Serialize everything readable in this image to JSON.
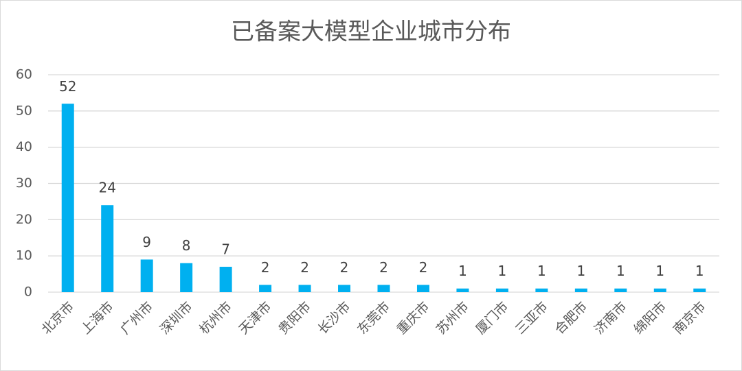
{
  "chart_data": {
    "type": "bar",
    "title": "已备案大模型企业城市分布",
    "categories": [
      "北京市",
      "上海市",
      "广州市",
      "深圳市",
      "杭州市",
      "天津市",
      "贵阳市",
      "长沙市",
      "东莞市",
      "重庆市",
      "苏州市",
      "厦门市",
      "三亚市",
      "合肥市",
      "济南市",
      "绵阳市",
      "南京市"
    ],
    "values": [
      52,
      24,
      9,
      8,
      7,
      2,
      2,
      2,
      2,
      2,
      1,
      1,
      1,
      1,
      1,
      1,
      1
    ],
    "color": "#00b0f0",
    "ylim": [
      0,
      60
    ],
    "yticks": [
      0,
      10,
      20,
      30,
      40,
      50,
      60
    ],
    "grid": true
  }
}
